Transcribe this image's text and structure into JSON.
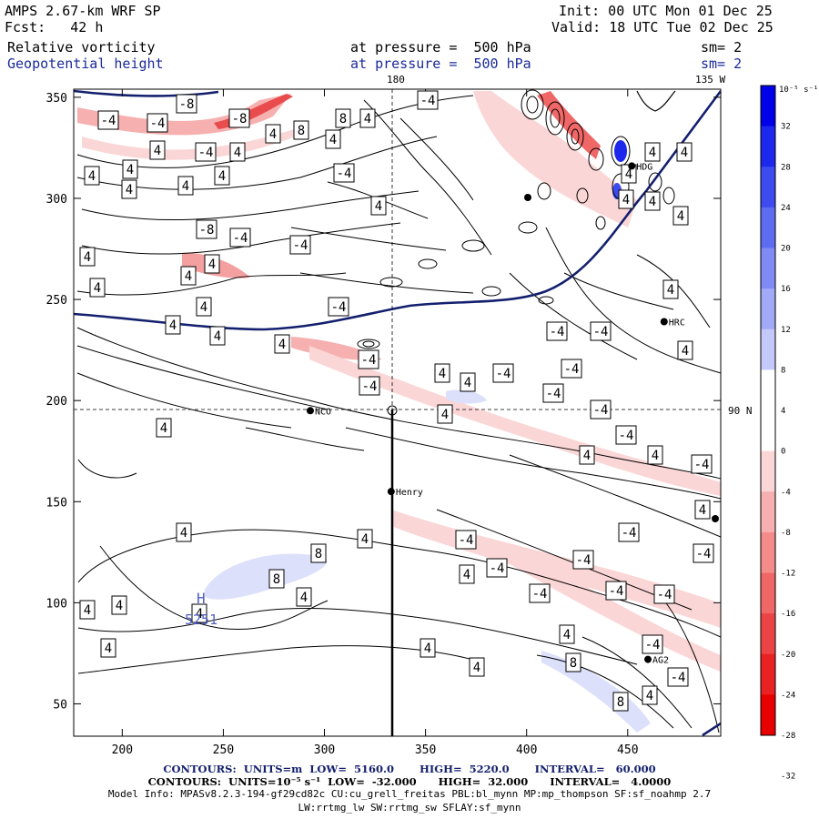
{
  "header": {
    "model": "AMPS 2.67-km WRF SP",
    "forecast": "Fcst:   42 h",
    "init": "Init: 00 UTC Mon 01 Dec 25",
    "valid": "Valid: 18 UTC Tue 02 Dec 25",
    "field1_name": "Relative vorticity",
    "field1_level": "at pressure =  500 hPa",
    "field1_sm": "sm= 2",
    "field2_name": "Geopotential height",
    "field2_level": "at pressure =  500 hPa",
    "field2_sm": "sm= 2"
  },
  "map_labels": {
    "lon_180": "180",
    "lon_135w": "135 W",
    "lat_90n": "90 N",
    "stations": [
      {
        "name": "NCO",
        "x": 293,
        "y": 195
      },
      {
        "name": "Henry",
        "x": 333,
        "y": 155
      },
      {
        "name": "HDG",
        "x": 452,
        "y": 316
      },
      {
        "name": "HRC",
        "x": 468,
        "y": 239
      },
      {
        "name": "AG2",
        "x": 460,
        "y": 72
      }
    ],
    "low_marker": "H",
    "low_value": "5251"
  },
  "axes": {
    "x_ticks": [
      200,
      250,
      300,
      350,
      400,
      450
    ],
    "y_ticks": [
      50,
      100,
      150,
      200,
      250,
      300,
      350
    ]
  },
  "colorbar": {
    "unit_label": "10⁻⁵ s⁻¹",
    "ticks": [
      "32",
      "28",
      "24",
      "20",
      "16",
      "12",
      "8",
      "4",
      "0",
      "-4",
      "-8",
      "-12",
      "-16",
      "-20",
      "-24",
      "-28",
      "-32"
    ],
    "colors": [
      "#0000e8",
      "#1c28ec",
      "#3d4cef",
      "#5e6cf2",
      "#8089f4",
      "#a2a9f7",
      "#c4c9fb",
      "#ffffff",
      "#ffffff",
      "#fbd6d6",
      "#f7b0b0",
      "#f48c8c",
      "#f06767",
      "#ec4444",
      "#e82222",
      "#e80000"
    ]
  },
  "contour_labels": [
    {
      "text": "-8",
      "x": 205,
      "y": 336
    },
    {
      "text": "-4",
      "x": 119,
      "y": 318
    },
    {
      "text": "-4",
      "x": 173,
      "y": 315
    },
    {
      "text": "-8",
      "x": 263,
      "y": 320
    },
    {
      "text": "8",
      "x": 377,
      "y": 320
    },
    {
      "text": "4",
      "x": 404,
      "y": 320
    },
    {
      "text": "-4",
      "x": 470,
      "y": 340
    },
    {
      "text": "8",
      "x": 331,
      "y": 307
    },
    {
      "text": "4",
      "x": 300,
      "y": 303
    },
    {
      "text": "4",
      "x": 366,
      "y": 297
    },
    {
      "text": "4",
      "x": 173,
      "y": 285
    },
    {
      "text": "-4",
      "x": 226,
      "y": 283
    },
    {
      "text": "4",
      "x": 261,
      "y": 283
    },
    {
      "text": "4",
      "x": 143,
      "y": 264
    },
    {
      "text": "-4",
      "x": 378,
      "y": 260
    },
    {
      "text": "4",
      "x": 101,
      "y": 257
    },
    {
      "text": "4",
      "x": 244,
      "y": 257
    },
    {
      "text": "4",
      "x": 142,
      "y": 242
    },
    {
      "text": "4",
      "x": 204,
      "y": 246
    },
    {
      "text": "4",
      "x": 416,
      "y": 224
    },
    {
      "text": "-8",
      "x": 227,
      "y": 198
    },
    {
      "text": "-4",
      "x": 264,
      "y": 189
    },
    {
      "text": "-4",
      "x": 330,
      "y": 181
    },
    {
      "text": "4",
      "x": 96,
      "y": 168
    },
    {
      "text": "4",
      "x": 233,
      "y": 160
    },
    {
      "text": "4",
      "x": 207,
      "y": 147
    },
    {
      "text": "4",
      "x": 107,
      "y": 134
    },
    {
      "text": "-4",
      "x": 372,
      "y": 113
    },
    {
      "text": "4",
      "x": 224,
      "y": 113
    },
    {
      "text": "4",
      "x": 190,
      "y": 93
    },
    {
      "text": "4",
      "x": 239,
      "y": 81
    },
    {
      "text": "4",
      "x": 310,
      "y": 72
    },
    {
      "text": "-4",
      "x": 405,
      "y": 55
    },
    {
      "text": "4",
      "x": 486,
      "y": 40
    },
    {
      "text": "4",
      "x": 180,
      "y": -20
    },
    {
      "text": "4",
      "x": 202,
      "y": -135
    },
    {
      "text": "4",
      "x": 401,
      "y": -142
    },
    {
      "text": "8",
      "x": 350,
      "y": -158
    },
    {
      "text": "8",
      "x": 304,
      "y": -186
    },
    {
      "text": "4",
      "x": 334,
      "y": -206
    },
    {
      "text": "4",
      "x": 131,
      "y": -215
    },
    {
      "text": "4",
      "x": 96,
      "y": -220
    },
    {
      "text": "4",
      "x": 219,
      "y": -224
    },
    {
      "text": "4",
      "x": 119,
      "y": -262
    },
    {
      "text": "4",
      "x": 470,
      "y": -262
    },
    {
      "text": "4",
      "x": 524,
      "y": -283
    },
    {
      "text": "8",
      "x": 630,
      "y": -278
    },
    {
      "text": "8",
      "x": 682,
      "y": -321
    },
    {
      "text": "4",
      "x": 714,
      "y": -314
    },
    {
      "text": "-4",
      "x": 512,
      "y": -143
    },
    {
      "text": "-4",
      "x": 546,
      "y": -174
    },
    {
      "text": "4",
      "x": 513,
      "y": -181
    },
    {
      "text": "-4",
      "x": 593,
      "y": -202
    },
    {
      "text": "-4",
      "x": 641,
      "y": -165
    },
    {
      "text": "-4",
      "x": 677,
      "y": -199
    },
    {
      "text": "-4",
      "x": 730,
      "y": -203
    },
    {
      "text": "-4",
      "x": 691,
      "y": -135
    },
    {
      "text": "-4",
      "x": 773,
      "y": -158
    },
    {
      "text": "4",
      "x": 772,
      "y": -110
    },
    {
      "text": "-4",
      "x": 688,
      "y": -28
    },
    {
      "text": "4",
      "x": 645,
      "y": -50
    },
    {
      "text": "4",
      "x": 720,
      "y": -50
    },
    {
      "text": "-4",
      "x": 771,
      "y": -60
    },
    {
      "text": "4",
      "x": 623,
      "y": -247
    },
    {
      "text": "-4",
      "x": 717,
      "y": -258
    },
    {
      "text": "-4",
      "x": 745,
      "y": -294
    },
    {
      "text": "-4",
      "x": 660,
      "y": 0
    },
    {
      "text": "-4",
      "x": 608,
      "y": 18
    },
    {
      "text": "4",
      "x": 514,
      "y": 30
    },
    {
      "text": "-4",
      "x": 553,
      "y": 40
    },
    {
      "text": "-4",
      "x": 628,
      "y": 45
    },
    {
      "text": "4",
      "x": 489,
      "y": -5
    },
    {
      "text": "-4",
      "x": 406,
      "y": 26
    },
    {
      "text": "-4",
      "x": 612,
      "y": 86
    },
    {
      "text": "-4",
      "x": 660,
      "y": 86
    },
    {
      "text": "4",
      "x": 737,
      "y": 132
    },
    {
      "text": "4",
      "x": 753,
      "y": 65
    },
    {
      "text": "4",
      "x": 717,
      "y": 283
    },
    {
      "text": "4",
      "x": 752,
      "y": 283
    },
    {
      "text": "4",
      "x": 717,
      "y": 229
    },
    {
      "text": "4",
      "x": 748,
      "y": 213
    },
    {
      "text": "4",
      "x": 688,
      "y": 231
    },
    {
      "text": "4",
      "x": 691,
      "y": 259
    }
  ],
  "footer": {
    "line1_prefix": "CONTOURS:  UNITS=m  LOW=  5160.0       HIGH=  5220.0       INTERVAL=   60.000",
    "line2_prefix": "CONTOURS:  UNITS=10⁻⁵ s⁻¹  LOW=  -32.000      HIGH=  32.000      INTERVAL=   4.0000",
    "line3": "Model Info: MPASv8.2.3-194-gf29cd82c CU:cu_grell_freitas PBL:bl_mynn MP:mp_thompson SF:sf_noahmp 2.7",
    "line4": "LW:rrtmg_lw SW:rrtmg_sw SFLAY:sf_mynn"
  }
}
